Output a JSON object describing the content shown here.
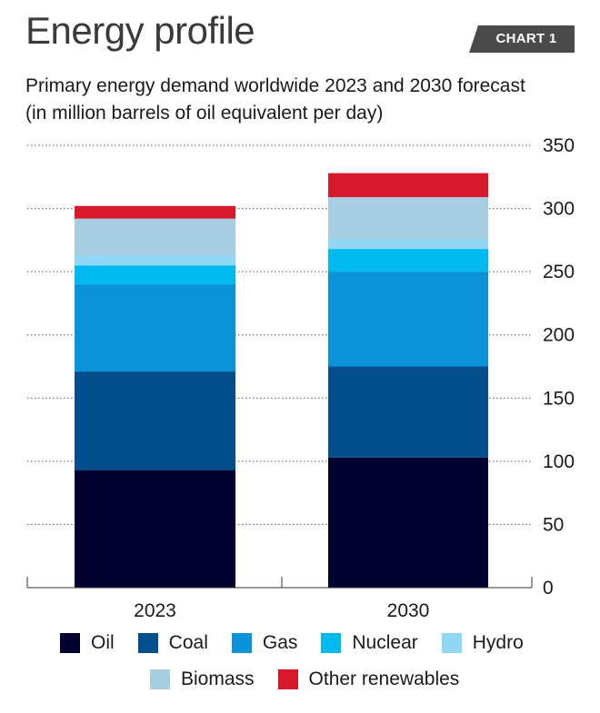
{
  "header": {
    "title": "Energy profile",
    "badge": "CHART 1"
  },
  "subtitle": {
    "line1": "Primary energy demand worldwide  2023 and 2030 forecast",
    "line2": "(in million barrels of oil equivalent per day)"
  },
  "colors": {
    "Oil": "#02002e",
    "Coal": "#034f8e",
    "Gas": "#0a93d8",
    "Nuclear": "#00b9ee",
    "Hydro": "#8fd7f5",
    "Biomass": "#a6cde1",
    "Other renewables": "#d8192b",
    "badge": "#4a4a4a",
    "grid": "#555555"
  },
  "chart_data": {
    "type": "bar",
    "stacked": true,
    "title": "Primary energy demand worldwide  2023 and 2030 forecast",
    "ylabel": "in million barrels of oil equivalent per day",
    "xlabel": "",
    "categories": [
      "2023",
      "2030"
    ],
    "ylim": [
      0,
      350
    ],
    "yticks": [
      0,
      50,
      100,
      150,
      200,
      250,
      300,
      350
    ],
    "y_axis_side": "right",
    "grid": "dotted",
    "series": [
      {
        "name": "Oil",
        "values": [
          93,
          103
        ]
      },
      {
        "name": "Coal",
        "values": [
          78,
          72
        ]
      },
      {
        "name": "Gas",
        "values": [
          69,
          75
        ]
      },
      {
        "name": "Nuclear",
        "values": [
          15,
          18
        ]
      },
      {
        "name": "Hydro",
        "values": [
          8,
          8
        ]
      },
      {
        "name": "Biomass",
        "values": [
          29,
          33
        ]
      },
      {
        "name": "Other renewables",
        "values": [
          10,
          19
        ]
      }
    ],
    "legend": {
      "position": "bottom",
      "rows": [
        [
          "Oil",
          "Coal",
          "Gas",
          "Nuclear",
          "Hydro"
        ],
        [
          "Biomass",
          "Other renewables"
        ]
      ]
    }
  }
}
